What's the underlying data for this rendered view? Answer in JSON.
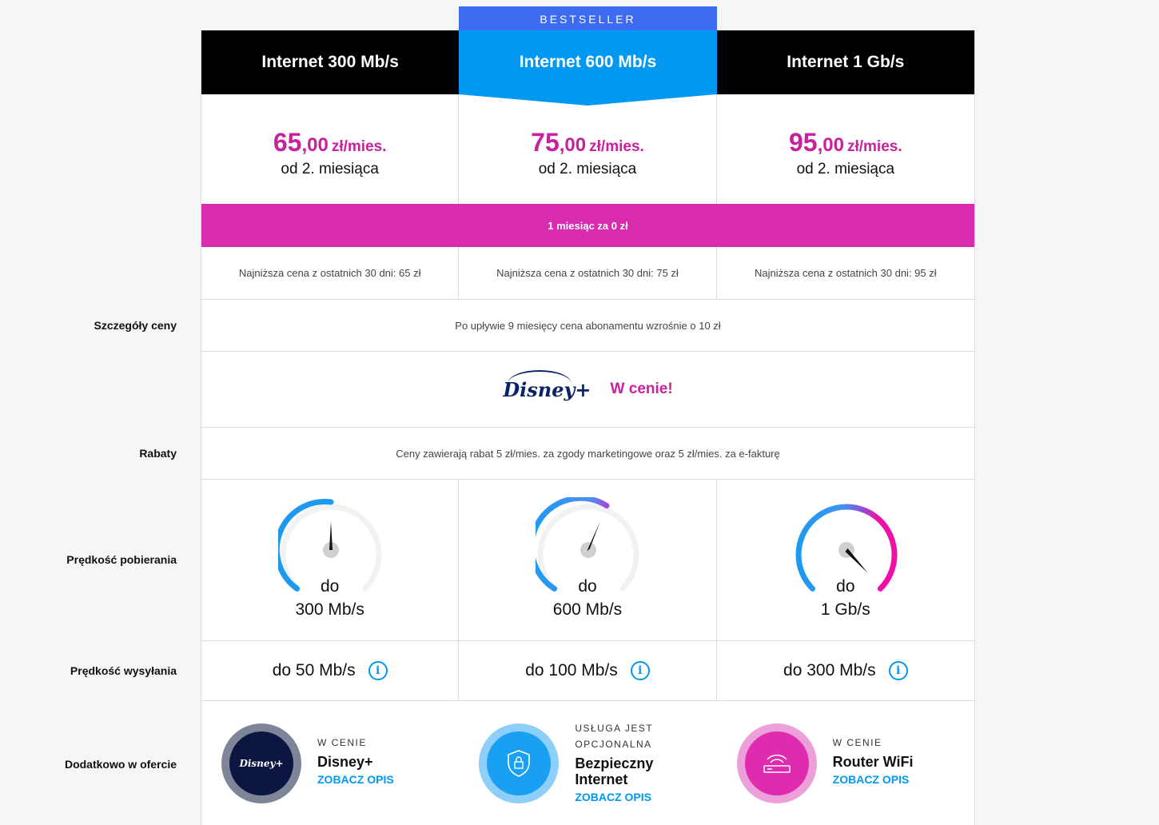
{
  "bestseller": "BESTSELLER",
  "row_labels": {
    "price_details": "Szczegóły ceny",
    "discounts": "Rabaty",
    "download": "Prędkość pobierania",
    "upload": "Prędkość wysyłania",
    "extras": "Dodatkowo w ofercie"
  },
  "plans": [
    {
      "name": "Internet 300 Mb/s",
      "price_int": "65",
      "price_dec": ",00",
      "price_unit": "zł/mies.",
      "from": "od 2. miesiąca",
      "lowest": "Najniższa cena z ostatnich 30 dni: 65 zł",
      "download_prefix": "do",
      "download_speed": "300 Mb/s",
      "upload_speed": "do 50 Mb/s",
      "gauge_level": 0.5
    },
    {
      "name": "Internet 600 Mb/s",
      "price_int": "75",
      "price_dec": ",00",
      "price_unit": "zł/mies.",
      "from": "od 2. miesiąca",
      "lowest": "Najniższa cena z ostatnich 30 dni: 75 zł",
      "download_prefix": "do",
      "download_speed": "600 Mb/s",
      "upload_speed": "do 100 Mb/s",
      "gauge_level": 0.6
    },
    {
      "name": "Internet 1 Gb/s",
      "price_int": "95",
      "price_dec": ",00",
      "price_unit": "zł/mies.",
      "from": "od 2. miesiąca",
      "lowest": "Najniższa cena z ostatnich 30 dni: 95 zł",
      "download_prefix": "do",
      "download_speed": "1 Gb/s",
      "upload_speed": "do 300 Mb/s",
      "gauge_level": 1.0
    }
  ],
  "promo": "1 miesiąc za 0 zł",
  "price_details_text": "Po upływie 9 miesięcy cena abonamentu wzrośnie o 10 zł",
  "disney": {
    "logo_text": "Disney+",
    "tagline": "W cenie!"
  },
  "discounts_text": "Ceny zawierają rabat 5 zł/mies. za zgody marketingowe oraz 5 zł/mies. za e-fakturę",
  "info_glyph": "i",
  "extras": [
    {
      "eyebrow_1": "W CENIE",
      "eyebrow_2": "",
      "title_1": "Disney+",
      "title_2": "",
      "link": "ZOBACZ OPIS",
      "icon": "disney-plus-icon",
      "logo_text": "Disney+"
    },
    {
      "eyebrow_1": "USŁUGA JEST",
      "eyebrow_2": "OPCJONALNA",
      "title_1": "Bezpieczny",
      "title_2": "Internet",
      "link": "ZOBACZ OPIS",
      "icon": "shield-lock-icon",
      "logo_text": ""
    },
    {
      "eyebrow_1": "W CENIE",
      "eyebrow_2": "",
      "title_1": "Router WiFi",
      "title_2": "",
      "link": "ZOBACZ OPIS",
      "icon": "router-wifi-icon",
      "logo_text": ""
    }
  ],
  "colors": {
    "magenta": "#d82bad",
    "price_magenta": "#c8219e",
    "blue": "#0098f0",
    "bestseller_blue": "#3d6bf2",
    "header_black": "#000000"
  }
}
